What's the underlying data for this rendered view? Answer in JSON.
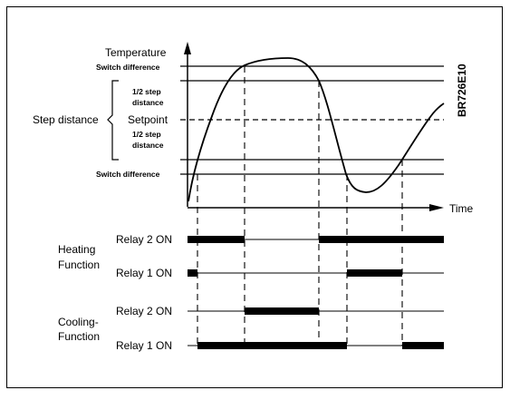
{
  "diagram": {
    "code": "BR726E10",
    "axis": {
      "y_title": "Temperature",
      "x_title": "Time"
    },
    "levels": {
      "switch_difference_upper": "Switch difference",
      "half_step_upper_line1": "1/2 step",
      "half_step_upper_line2": "distance",
      "setpoint": "Setpoint",
      "half_step_lower_line1": "1/2 step",
      "half_step_lower_line2": "distance",
      "switch_difference_lower": "Switch difference"
    },
    "step_distance": "Step distance",
    "groups": {
      "heating_line1": "Heating",
      "heating_line2": "Function",
      "cooling_line1": "Cooling-",
      "cooling_line2": "Function"
    },
    "relays": {
      "heating_relay2": "Relay 2 ON",
      "heating_relay1": "Relay 1 ON",
      "cooling_relay2": "Relay 2 ON",
      "cooling_relay1": "Relay 1 ON"
    }
  }
}
